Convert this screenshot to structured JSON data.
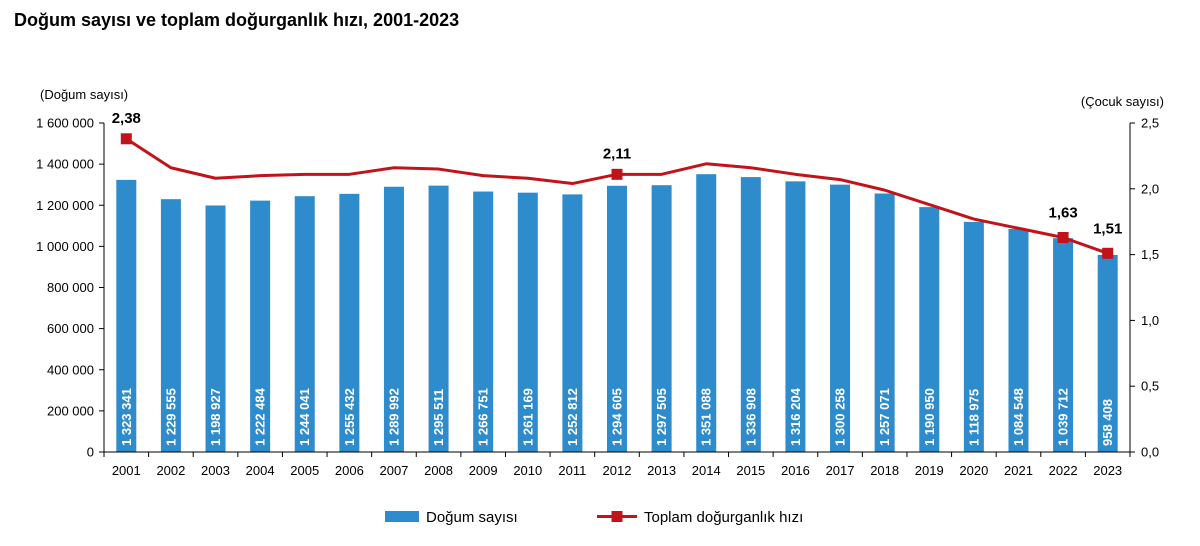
{
  "chart_data": {
    "type": "bar",
    "title": "Doğum sayısı ve toplam doğurganlık hızı, 2001-2023",
    "categories": [
      "2001",
      "2002",
      "2003",
      "2004",
      "2005",
      "2006",
      "2007",
      "2008",
      "2009",
      "2010",
      "2011",
      "2012",
      "2013",
      "2014",
      "2015",
      "2016",
      "2017",
      "2018",
      "2019",
      "2020",
      "2021",
      "2022",
      "2023"
    ],
    "series": [
      {
        "name": "Doğum sayısı",
        "type": "bar",
        "axis": "left",
        "color": "#2e8bcc",
        "values": [
          1323341,
          1229555,
          1198927,
          1222484,
          1244041,
          1255432,
          1289992,
          1295511,
          1266751,
          1261169,
          1252812,
          1294605,
          1297505,
          1351088,
          1336908,
          1316204,
          1300258,
          1257071,
          1190950,
          1118975,
          1084548,
          1039712,
          958408
        ],
        "value_labels": [
          "1 323 341",
          "1 229 555",
          "1 198 927",
          "1 222 484",
          "1 244 041",
          "1 255 432",
          "1 289 992",
          "1 295 511",
          "1 266 751",
          "1 261 169",
          "1 252 812",
          "1 294 605",
          "1 297 505",
          "1 351 088",
          "1 336 908",
          "1 316 204",
          "1 300 258",
          "1 257 071",
          "1 190 950",
          "1 118 975",
          "1 084 548",
          "1 039 712",
          "958 408"
        ]
      },
      {
        "name": "Toplam doğurganlık hızı",
        "type": "line",
        "axis": "right",
        "color": "#c0141a",
        "values": [
          2.38,
          2.16,
          2.08,
          2.1,
          2.11,
          2.11,
          2.16,
          2.15,
          2.1,
          2.08,
          2.04,
          2.11,
          2.11,
          2.19,
          2.16,
          2.11,
          2.07,
          1.99,
          1.88,
          1.77,
          1.7,
          1.63,
          1.51
        ],
        "labeled_points": [
          {
            "index": 0,
            "label": "2,38"
          },
          {
            "index": 11,
            "label": "2,11"
          },
          {
            "index": 21,
            "label": "1,63"
          },
          {
            "index": 22,
            "label": "1,51"
          }
        ]
      }
    ],
    "y_left": {
      "label": "(Doğum sayısı)",
      "ylim": [
        0,
        1600000
      ],
      "ticks": [
        0,
        200000,
        400000,
        600000,
        800000,
        1000000,
        1200000,
        1400000,
        1600000
      ],
      "tick_labels": [
        "0",
        "200 000",
        "400 000",
        "600 000",
        "800 000",
        "1 000 000",
        "1 200 000",
        "1 400 000",
        "1 600 000"
      ]
    },
    "y_right": {
      "label": "(Çocuk sayısı)",
      "ylim": [
        0,
        2.5
      ],
      "ticks": [
        0,
        0.5,
        1.0,
        1.5,
        2.0,
        2.5
      ],
      "tick_labels": [
        "0,0",
        "0,5",
        "1,0",
        "1,5",
        "2,0",
        "2,5"
      ]
    },
    "legend": {
      "position": "bottom",
      "entries": [
        "Doğum sayısı",
        "Toplam doğurganlık hızı"
      ]
    },
    "grid": false
  }
}
